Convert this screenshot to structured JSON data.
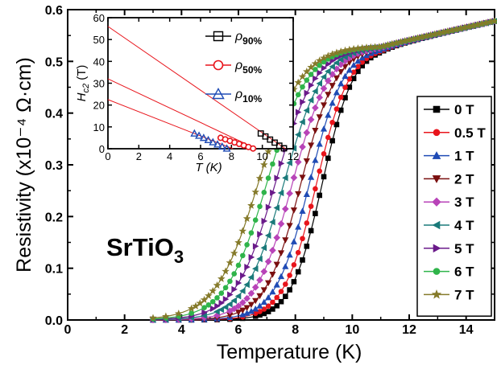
{
  "chart_data": [
    {
      "type": "line",
      "xlabel": "Temperature (K)",
      "ylabel": "Resistivity (x10⁻⁴ Ω·cm)",
      "xlim": [
        0,
        15
      ],
      "ylim": [
        0,
        0.6
      ],
      "xticks": [
        0,
        2,
        4,
        6,
        8,
        10,
        12,
        14
      ],
      "yticks": [
        0.0,
        0.1,
        0.2,
        0.3,
        0.4,
        0.5,
        0.6
      ],
      "xtick_labels": [
        "0",
        "2",
        "4",
        "6",
        "8",
        "10",
        "12",
        "14"
      ],
      "ytick_labels": [
        "0.0",
        "0.1",
        "0.2",
        "0.3",
        "0.4",
        "0.5",
        "0.6"
      ],
      "annotation": {
        "main": "SrTiO",
        "sub": "3"
      },
      "legend_position": "right",
      "series": [
        {
          "name": "0 T",
          "color": "#000000",
          "marker": "square",
          "tc": 8.95,
          "width": 0.55
        },
        {
          "name": "0.5 T",
          "color": "#e8141b",
          "marker": "circle",
          "tc": 8.75,
          "width": 0.58
        },
        {
          "name": "1 T",
          "color": "#1f4bb5",
          "marker": "triangle-up",
          "tc": 8.5,
          "width": 0.6
        },
        {
          "name": "2 T",
          "color": "#7a0f0f",
          "marker": "triangle-down",
          "tc": 8.2,
          "width": 0.62
        },
        {
          "name": "3 T",
          "color": "#b843b8",
          "marker": "diamond",
          "tc": 7.9,
          "width": 0.65
        },
        {
          "name": "4 T",
          "color": "#1a7a7a",
          "marker": "triangle-left",
          "tc": 7.6,
          "width": 0.68
        },
        {
          "name": "5 T",
          "color": "#6a1a8a",
          "marker": "triangle-right",
          "tc": 7.3,
          "width": 0.7
        },
        {
          "name": "6 T",
          "color": "#2fb44a",
          "marker": "circle",
          "tc": 7.0,
          "width": 0.72
        },
        {
          "name": "7 T",
          "color": "#857a2a",
          "marker": "star",
          "tc": 6.7,
          "width": 0.75
        }
      ],
      "rho_normal": 0.53
    },
    {
      "type": "scatter",
      "xlabel": "T (K)",
      "ylabel_main": "H",
      "ylabel_sub": "c2",
      "ylabel_unit": " (T)",
      "xlim": [
        0,
        12
      ],
      "ylim": [
        0,
        60
      ],
      "xticks": [
        0,
        2,
        4,
        6,
        8,
        10,
        12
      ],
      "yticks": [
        0,
        10,
        20,
        30,
        40,
        50,
        60
      ],
      "xtick_labels": [
        "0",
        "2",
        "4",
        "6",
        "8",
        "10",
        "12"
      ],
      "ytick_labels": [
        "0",
        "10",
        "20",
        "30",
        "40",
        "50",
        "60"
      ],
      "legend_position": "top-right",
      "series": [
        {
          "label_main": "ρ",
          "label_sub": "90%",
          "color": "#000000",
          "marker": "square",
          "x": [
            9.9,
            10.2,
            10.5,
            10.8,
            11.1,
            11.4
          ],
          "y": [
            7,
            5.6,
            4.2,
            2.8,
            1.4,
            0.2
          ],
          "fit": [
            [
              0,
              56
            ],
            [
              11.5,
              0
            ]
          ]
        },
        {
          "label_main": "ρ",
          "label_sub": "50%",
          "color": "#e8141b",
          "marker": "circle",
          "x": [
            7.3,
            7.6,
            7.9,
            8.2,
            8.5,
            8.8,
            9.1,
            9.4
          ],
          "y": [
            5.0,
            4.3,
            3.6,
            2.9,
            2.2,
            1.5,
            0.8,
            0.1
          ],
          "fit": [
            [
              0,
              32
            ],
            [
              9.6,
              0
            ]
          ]
        },
        {
          "label_main": "ρ",
          "label_sub": "10%",
          "color": "#1f4bb5",
          "marker": "triangle-up",
          "x": [
            5.6,
            5.9,
            6.2,
            6.5,
            6.8,
            7.1,
            7.4,
            7.7
          ],
          "y": [
            7.0,
            6.0,
            5.0,
            4.0,
            3.0,
            2.0,
            1.0,
            0.1
          ],
          "fit": [
            [
              0,
              22.5
            ],
            [
              8.1,
              0
            ]
          ]
        }
      ]
    }
  ]
}
